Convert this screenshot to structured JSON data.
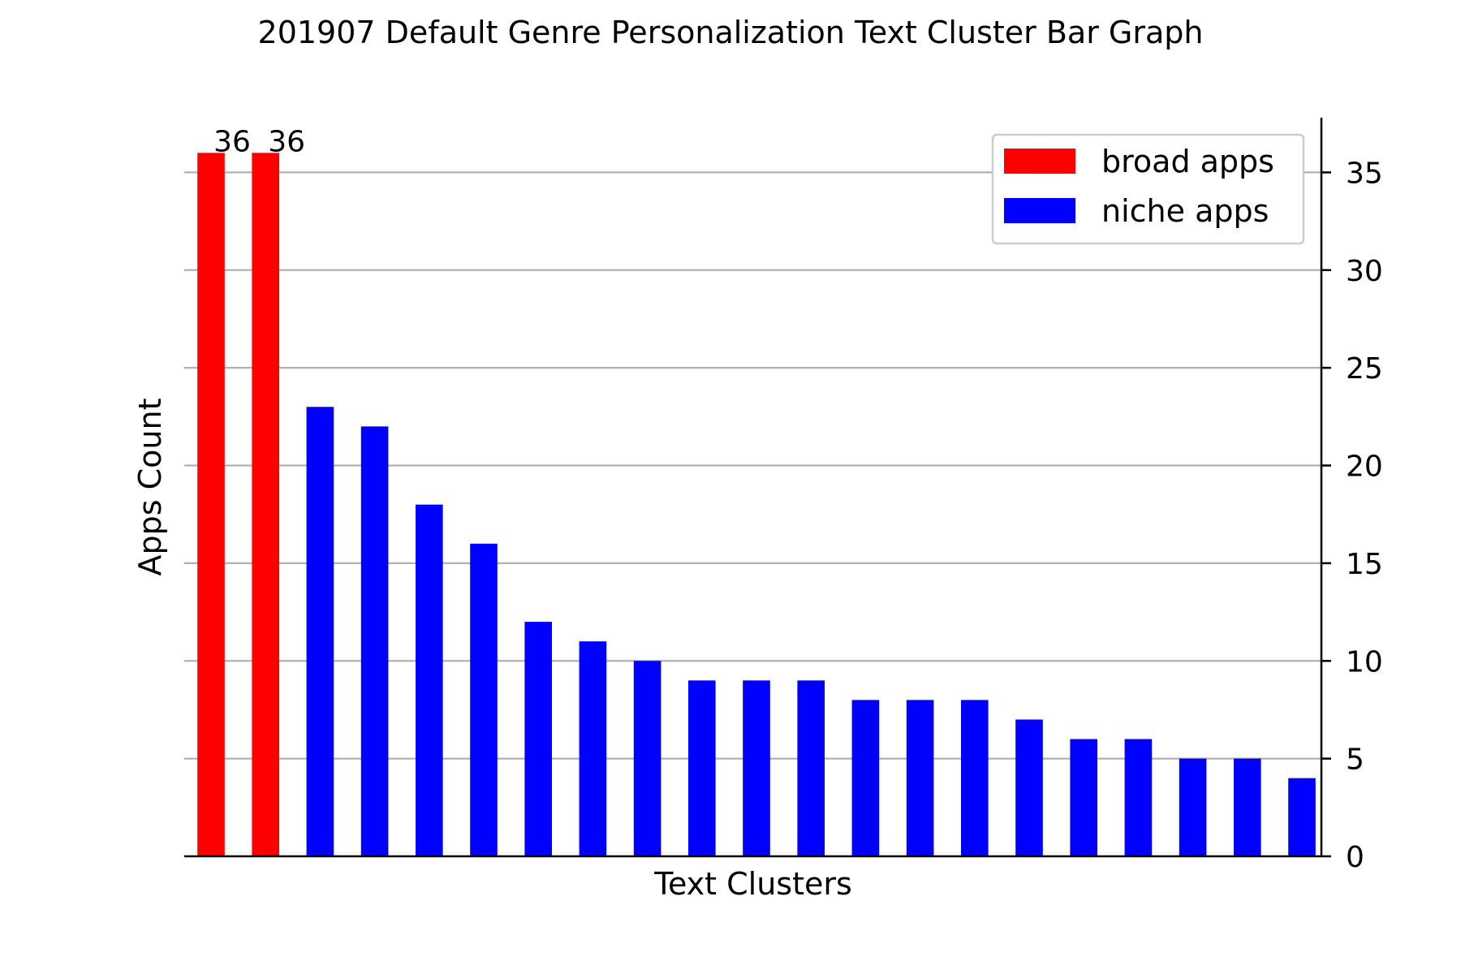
{
  "chart_data": {
    "type": "bar",
    "title": "201907 Default Genre Personalization Text Cluster Bar Graph",
    "xlabel": "Text Clusters",
    "ylabel": "Apps Count",
    "ylim": [
      0,
      37.8
    ],
    "yticks": [
      0,
      5,
      10,
      15,
      20,
      25,
      30,
      35
    ],
    "y_axis_side": "right",
    "grid": "horizontal",
    "legend_position": "top-right",
    "series": [
      {
        "name": "broad apps",
        "color": "#ff0000",
        "values": [
          36,
          36
        ]
      },
      {
        "name": "niche apps",
        "color": "#0000ff",
        "values": [
          23,
          22,
          18,
          16,
          12,
          11,
          10,
          9,
          9,
          9,
          8,
          8,
          8,
          7,
          6,
          6,
          5,
          5,
          4
        ]
      }
    ],
    "data_labels": [
      "36",
      "36"
    ]
  }
}
